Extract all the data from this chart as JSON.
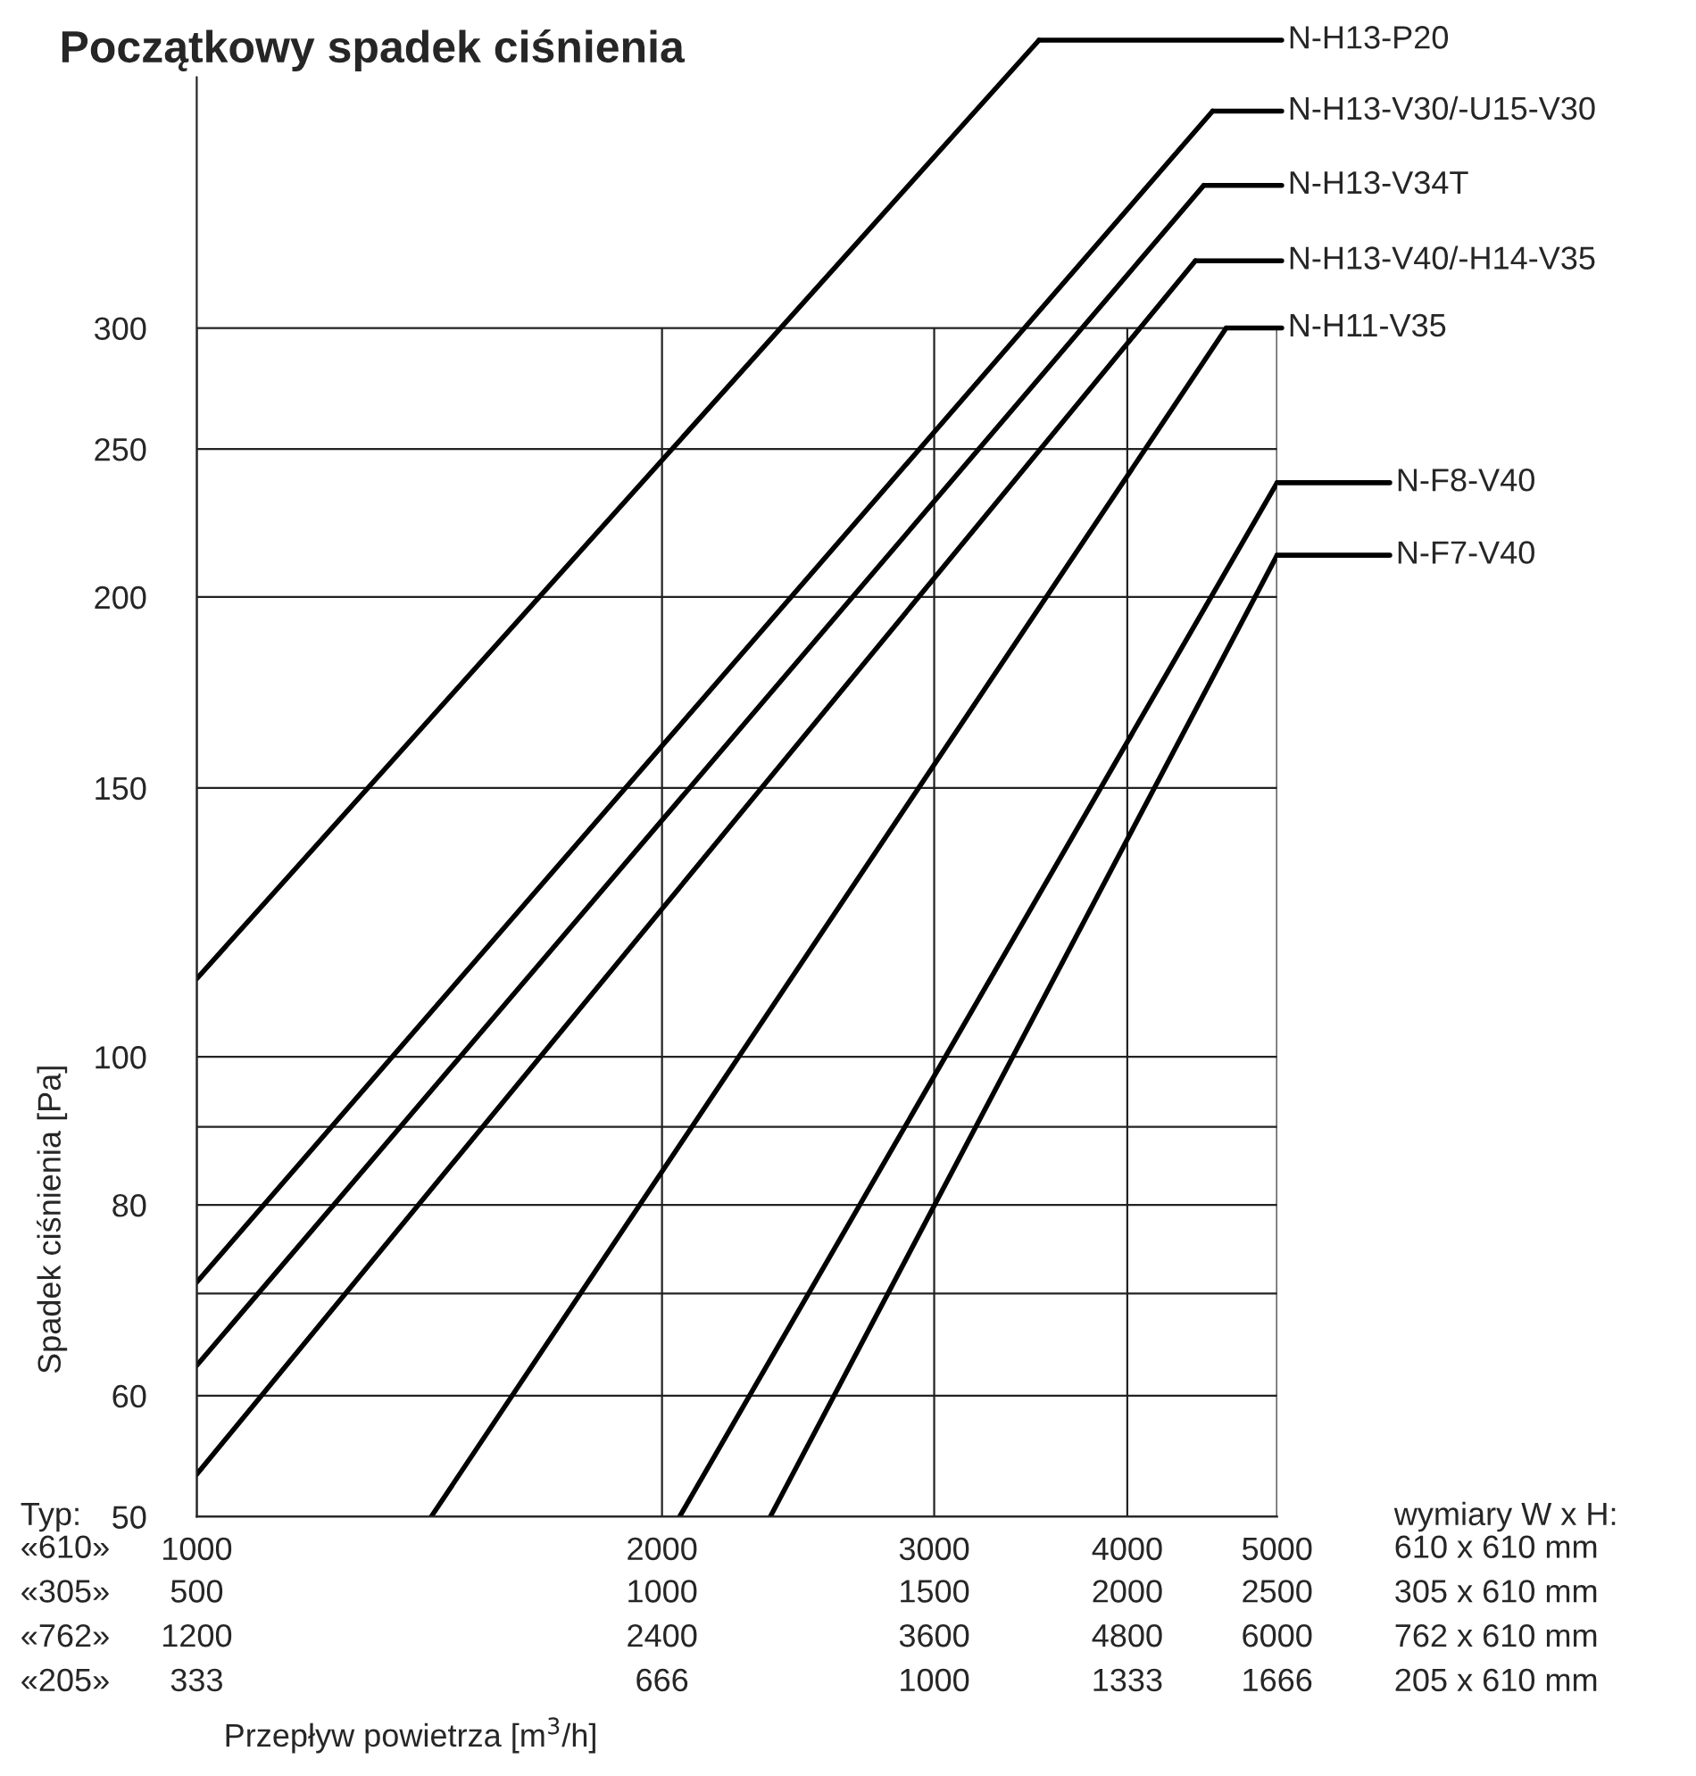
{
  "chart_data": {
    "type": "line",
    "title": "Początkowy spadek ciśnienia",
    "xlabel": "Przepływ powietrza [m$^{3}$/h]",
    "ylabel": "Spadek ciśnienia [Pa]",
    "log": "xy",
    "grid": true,
    "legend": "right",
    "marker": "none",
    "line_style": "solid",
    "xlim": [
      1000,
      5000
    ],
    "xticks": [
      1000,
      2000,
      3000,
      4000,
      5000
    ],
    "ylim": [
      50,
      470
    ],
    "yticks": [
      50,
      60,
      {
        "value": 70,
        "label": null
      },
      80,
      {
        "value": 90,
        "label": null
      },
      100,
      150,
      200,
      250,
      300
    ],
    "series": [
      {
        "name": "N-H13-P20",
        "color": "#000000",
        "x": [
          1000,
          3507
        ],
        "values": [
          112.5,
          463
        ]
      },
      {
        "name": "N-H13-V30/-U15-V30",
        "color": "#000000",
        "x": [
          1000,
          4542
        ],
        "values": [
          71.2,
          416
        ]
      },
      {
        "name": "N-H13-V34T",
        "color": "#000000",
        "x": [
          1000,
          4483
        ],
        "values": [
          62.8,
          372
        ]
      },
      {
        "name": "N-H13-V40/-H14-V35",
        "color": "#000000",
        "x": [
          1000,
          4427
        ],
        "values": [
          53.3,
          332
        ]
      },
      {
        "name": "N-H11-V35",
        "color": "#000000",
        "x": [
          1418,
          4635
        ],
        "values": [
          50,
          300
        ]
      },
      {
        "name": "N-F8-V40",
        "color": "#000000",
        "x": [
          2053,
          5000
        ],
        "values": [
          50,
          237.6
        ]
      },
      {
        "name": "N-F7-V40",
        "color": "#000000",
        "x": [
          2350,
          5000
        ],
        "values": [
          50,
          213
        ]
      }
    ],
    "annotations": [
      "Typ:",
      "«610»",
      "«305»",
      "«762»",
      "«205»",
      "wymiary W x H:",
      "610 x 610 mm",
      "305 x 610 mm",
      "762 x 610 mm",
      "205 x 610 mm",
      "500",
      "1000",
      "1500",
      "2000",
      "2500",
      "1200",
      "2400",
      "3600",
      "4800",
      "6000",
      "333",
      "666",
      "1000",
      "1333",
      "1666"
    ]
  }
}
